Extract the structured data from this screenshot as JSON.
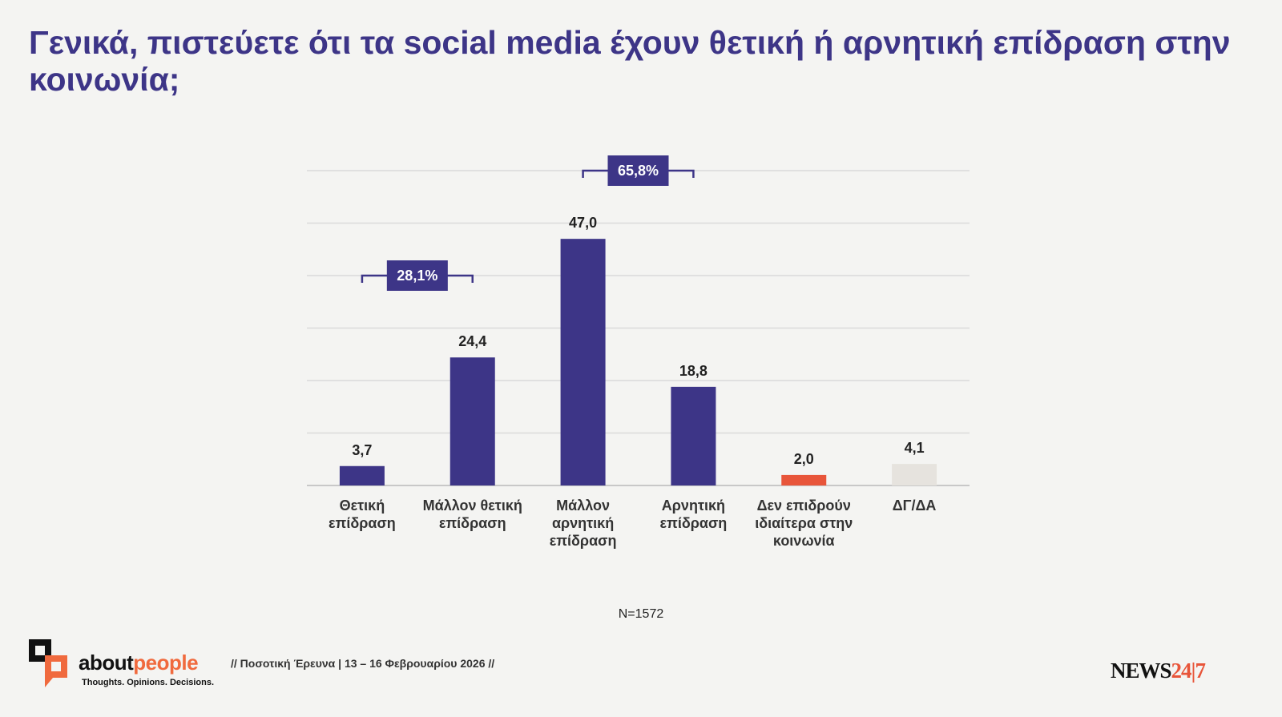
{
  "chart_data": {
    "type": "bar",
    "title": "Γενικά, πιστεύετε ότι τα social media έχουν θετική ή αρνητική επίδραση στην κοινωνία;",
    "categories": [
      "Θετική\nεπίδραση",
      "Μάλλον θετική\nεπίδραση",
      "Μάλλον\nαρνητική\nεπίδραση",
      "Αρνητική\nεπίδραση",
      "Δεν επιδρούν\nιδιαίτερα στην\nκοινωνία",
      "ΔΓ/ΔΑ"
    ],
    "values": [
      3.7,
      24.4,
      47.0,
      18.8,
      2.0,
      4.1
    ],
    "value_labels": [
      "3,7",
      "24,4",
      "47,0",
      "18,8",
      "2,0",
      "4,1"
    ],
    "colors": [
      "#3d3587",
      "#3d3587",
      "#3d3587",
      "#3d3587",
      "#e8553a",
      "#e6e3de"
    ],
    "ylim": [
      0,
      60
    ],
    "yticks": [
      0,
      10,
      20,
      30,
      40,
      50,
      60
    ],
    "grid": true,
    "annotations": [
      {
        "value": 28.1,
        "label": "28,1%"
      },
      {
        "value": 65.8,
        "label": "65,8%"
      }
    ],
    "note": "N=1572"
  },
  "footer": {
    "logo_part_1": "about",
    "logo_part_2": "people",
    "tagline": "Thoughts. Opinions. Decisions.",
    "survey": "// Ποσοτική Έρευνα | 13 – 16 Φεβρουαρίου 2026 //",
    "brand_part_1": "NEWS",
    "brand_part_2": "24|7"
  }
}
